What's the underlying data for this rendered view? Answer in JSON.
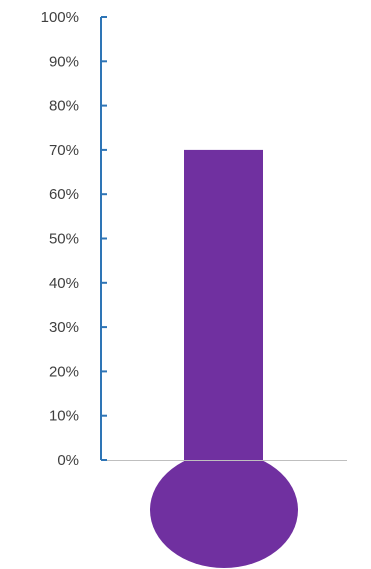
{
  "chart_data": {
    "type": "bar",
    "subtype": "thermometer",
    "categories": [
      ""
    ],
    "values": [
      0.7
    ],
    "ylim": [
      0,
      1
    ],
    "yticks": [
      0,
      0.1,
      0.2,
      0.3,
      0.4,
      0.5,
      0.6,
      0.7,
      0.8,
      0.9,
      1.0
    ],
    "ytick_labels": [
      "0%",
      "10%",
      "20%",
      "30%",
      "40%",
      "50%",
      "60%",
      "70%",
      "80%",
      "90%",
      "100%"
    ],
    "grid": false,
    "legend": "none",
    "colors": {
      "fill": "#7030A0",
      "axis": "#2E75B6",
      "baseline": "#BFBFBF",
      "text": "#404040"
    }
  }
}
